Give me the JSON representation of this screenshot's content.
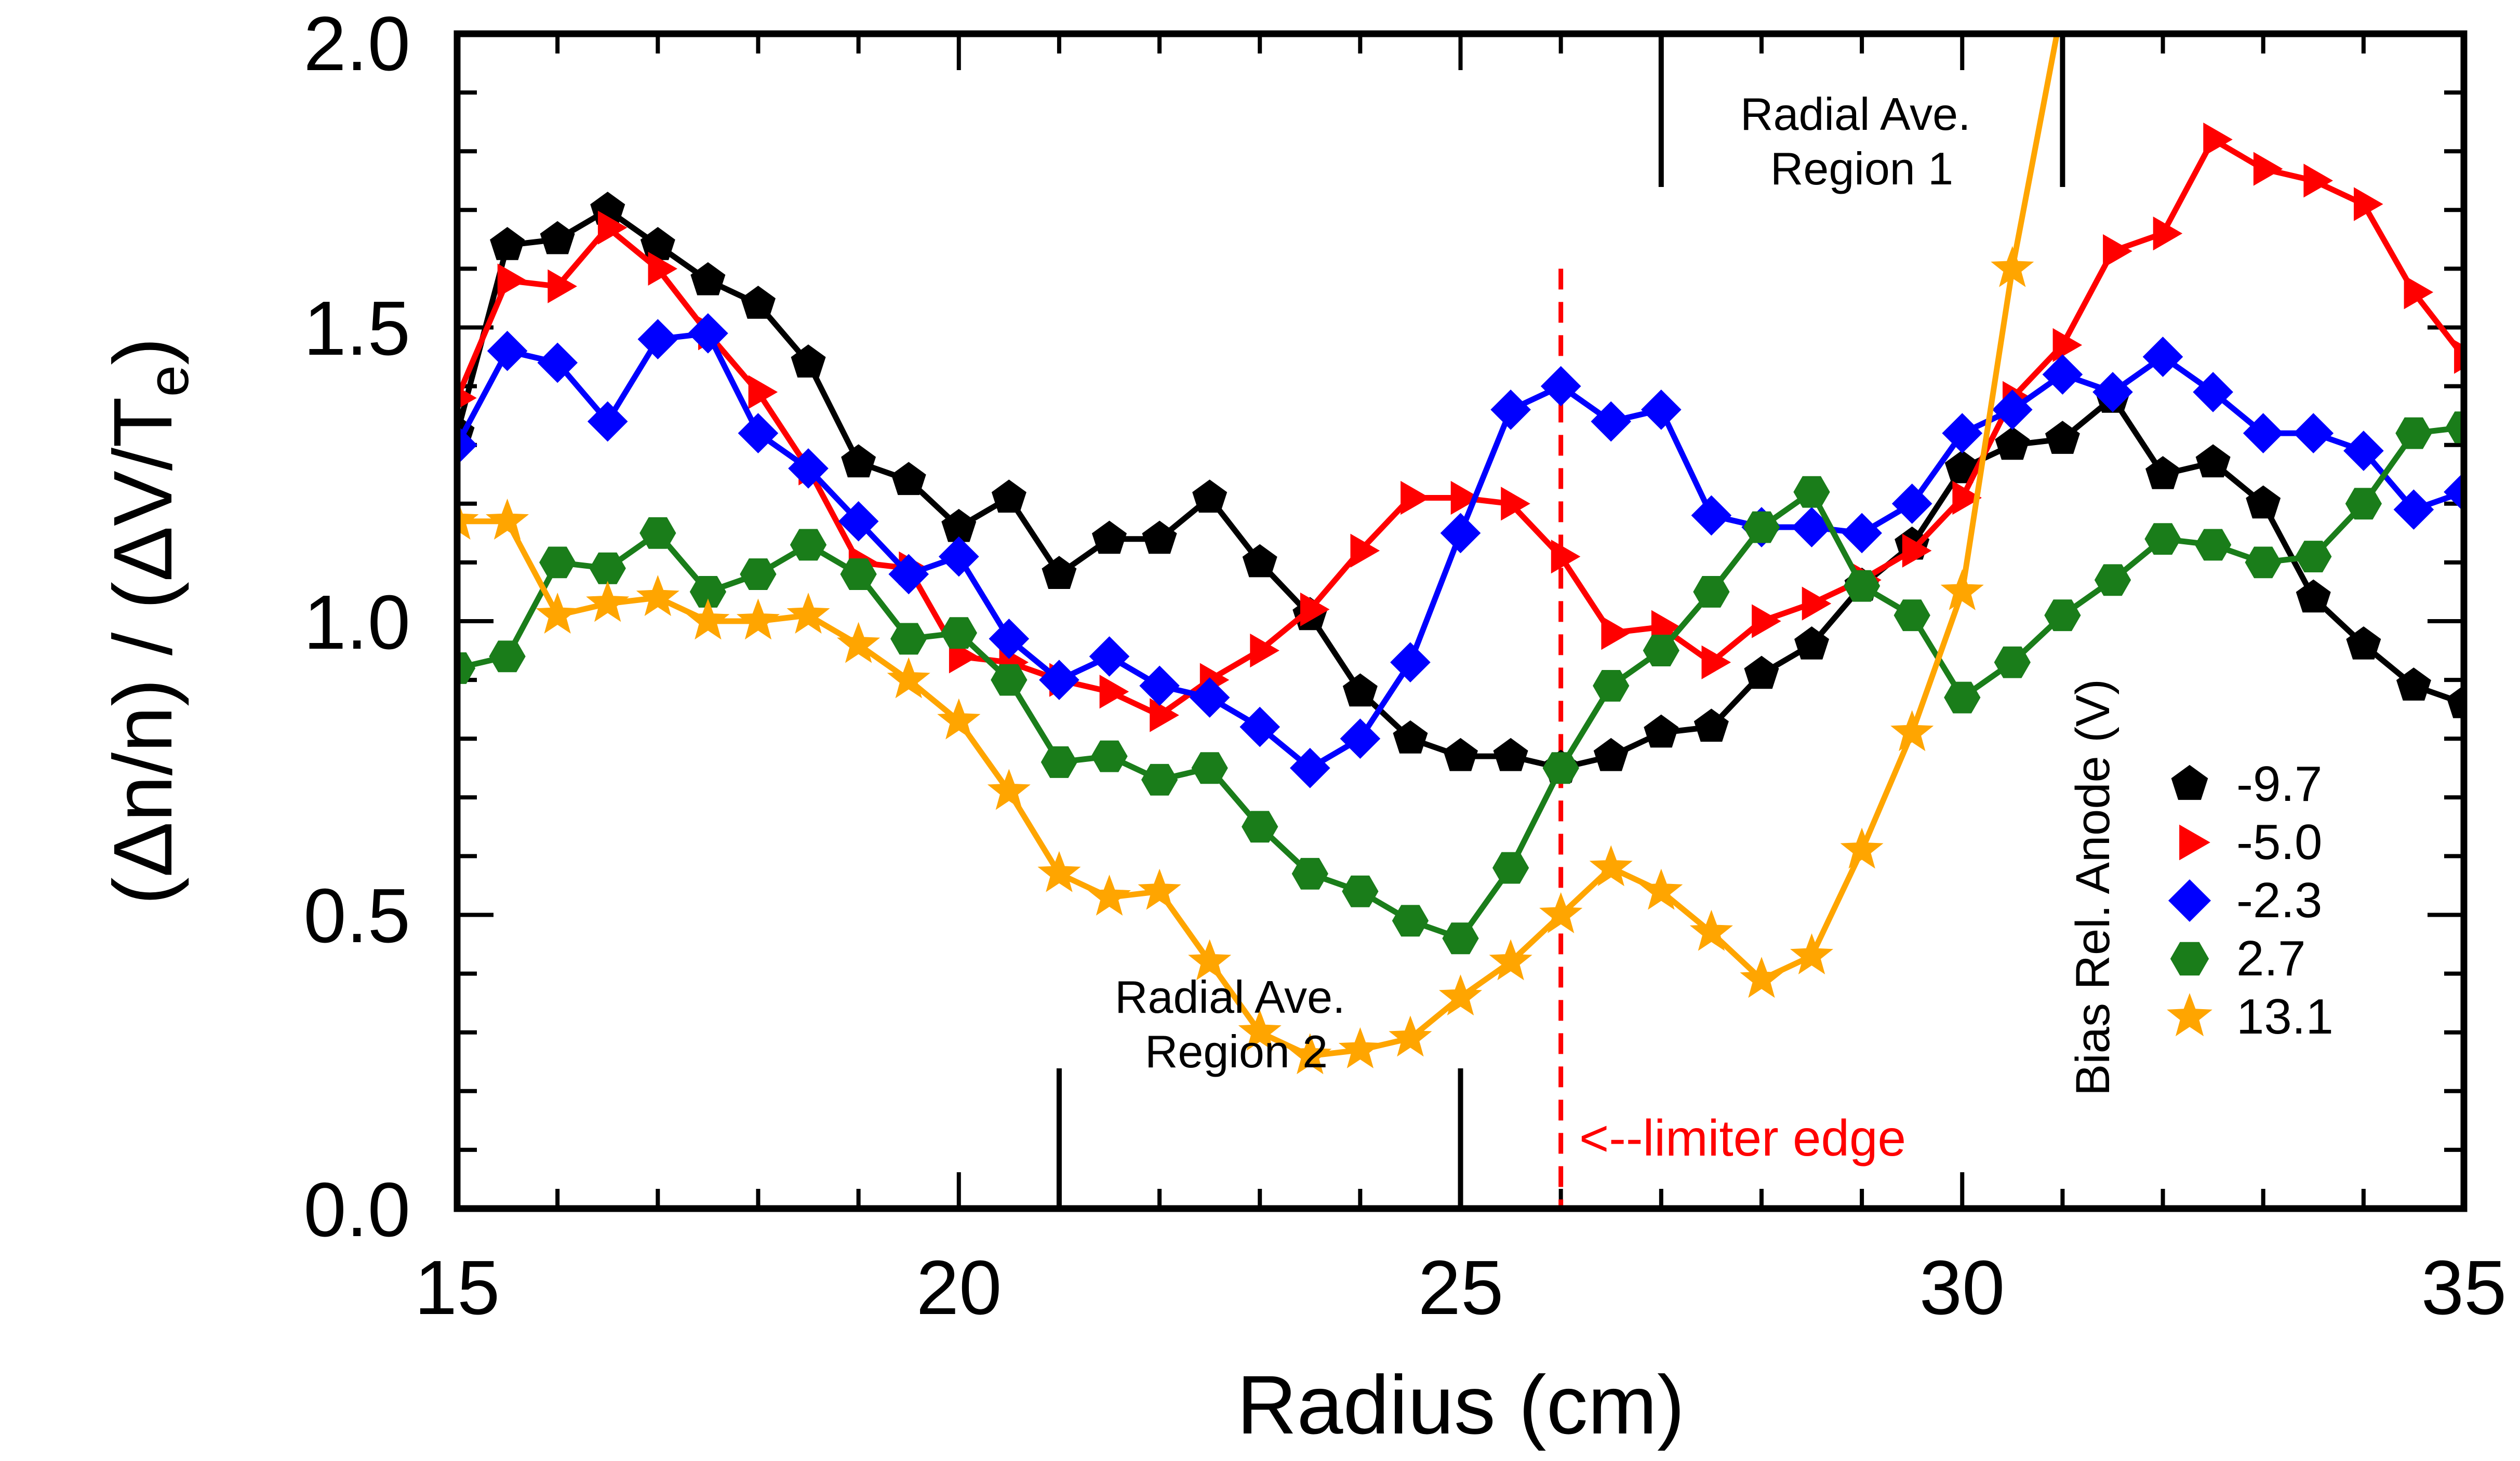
{
  "chart_data": {
    "type": "line",
    "xlabel": "Radius (cm)",
    "ylabel": "(Δn/n) / (ΔV/T",
    "ylabel_sub": "e",
    "ylabel_close": ")",
    "xlim": [
      15,
      35
    ],
    "ylim": [
      0,
      2
    ],
    "xticks": [
      "15",
      "20",
      "25",
      "30",
      "35"
    ],
    "yticks": [
      "0.0",
      "0.5",
      "1.0",
      "1.5",
      "2.0"
    ],
    "legend_title": "Bias Rel. Anode (V)",
    "legend_position": "right",
    "annotations": {
      "region1": [
        "Radial Ave.",
        "Region 1"
      ],
      "region2": [
        "Radial Ave.",
        "Region 2"
      ],
      "limiter": "<--limiter edge"
    },
    "region1_bounds": [
      27,
      31
    ],
    "region2_bounds": [
      21,
      25
    ],
    "limiter_x": 26,
    "series": [
      {
        "name": "-9.7",
        "color": "#000000",
        "marker": "pentagon",
        "x": [
          15.0,
          15.5,
          16.0,
          16.5,
          17.0,
          17.5,
          18.0,
          18.5,
          19.0,
          19.5,
          20.0,
          20.5,
          21.0,
          21.5,
          22.0,
          22.5,
          23.0,
          23.5,
          24.0,
          24.5,
          25.0,
          25.5,
          26.0,
          26.5,
          27.0,
          27.5,
          28.0,
          28.5,
          29.0,
          29.5,
          30.0,
          30.5,
          31.0,
          31.5,
          32.0,
          32.5,
          33.0,
          33.5,
          34.0,
          34.5,
          35.0
        ],
        "y": [
          1.32,
          1.64,
          1.65,
          1.7,
          1.64,
          1.58,
          1.54,
          1.44,
          1.27,
          1.24,
          1.16,
          1.21,
          1.08,
          1.14,
          1.14,
          1.21,
          1.1,
          1.01,
          0.88,
          0.8,
          0.77,
          0.77,
          0.75,
          0.77,
          0.81,
          0.82,
          0.91,
          0.96,
          1.06,
          1.13,
          1.26,
          1.3,
          1.31,
          1.38,
          1.25,
          1.27,
          1.2,
          1.04,
          0.96,
          0.89,
          0.86
        ]
      },
      {
        "name": "-5.0",
        "color": "#ff0000",
        "marker": "triangle-right",
        "x": [
          15.0,
          15.5,
          16.0,
          16.5,
          17.0,
          17.5,
          18.0,
          18.5,
          19.0,
          19.5,
          20.0,
          20.5,
          21.0,
          21.5,
          22.0,
          22.5,
          23.0,
          23.5,
          24.0,
          24.5,
          25.0,
          25.5,
          26.0,
          26.5,
          27.0,
          27.5,
          28.0,
          28.5,
          29.0,
          29.5,
          30.0,
          30.5,
          31.0,
          31.5,
          32.0,
          32.5,
          33.0,
          33.5,
          34.0,
          34.5,
          35.0
        ],
        "y": [
          1.38,
          1.58,
          1.57,
          1.67,
          1.6,
          1.49,
          1.39,
          1.26,
          1.1,
          1.09,
          0.94,
          0.93,
          0.9,
          0.88,
          0.84,
          0.9,
          0.95,
          1.02,
          1.12,
          1.21,
          1.21,
          1.2,
          1.11,
          0.98,
          0.99,
          0.93,
          1.0,
          1.03,
          1.07,
          1.12,
          1.21,
          1.38,
          1.47,
          1.63,
          1.66,
          1.82,
          1.77,
          1.75,
          1.71,
          1.56,
          1.45
        ]
      },
      {
        "name": "-2.3",
        "color": "#0000ff",
        "marker": "diamond",
        "x": [
          15.0,
          15.5,
          16.0,
          16.5,
          17.0,
          17.5,
          18.0,
          18.5,
          19.0,
          19.5,
          20.0,
          20.5,
          21.0,
          21.5,
          22.0,
          22.5,
          23.0,
          23.5,
          24.0,
          24.5,
          25.0,
          25.5,
          26.0,
          26.5,
          27.0,
          27.5,
          28.0,
          28.5,
          29.0,
          29.5,
          30.0,
          30.5,
          31.0,
          31.5,
          32.0,
          32.5,
          33.0,
          33.5,
          34.0,
          34.5,
          35.0
        ],
        "y": [
          1.3,
          1.46,
          1.44,
          1.34,
          1.48,
          1.49,
          1.32,
          1.26,
          1.17,
          1.08,
          1.11,
          0.97,
          0.9,
          0.94,
          0.89,
          0.87,
          0.82,
          0.75,
          0.8,
          0.93,
          1.15,
          1.36,
          1.4,
          1.34,
          1.36,
          1.18,
          1.16,
          1.16,
          1.15,
          1.2,
          1.32,
          1.36,
          1.42,
          1.39,
          1.45,
          1.39,
          1.32,
          1.32,
          1.29,
          1.19,
          1.22
        ]
      },
      {
        "name": "2.7",
        "color": "#1a7d1a",
        "marker": "hexagon",
        "x": [
          15.0,
          15.5,
          16.0,
          16.5,
          17.0,
          17.5,
          18.0,
          18.5,
          19.0,
          19.5,
          20.0,
          20.5,
          21.0,
          21.5,
          22.0,
          22.5,
          23.0,
          23.5,
          24.0,
          24.5,
          25.0,
          25.5,
          26.0,
          26.5,
          27.0,
          27.5,
          28.0,
          28.5,
          29.0,
          29.5,
          30.0,
          30.5,
          31.0,
          31.5,
          32.0,
          32.5,
          33.0,
          33.5,
          34.0,
          34.5,
          35.0
        ],
        "y": [
          0.92,
          0.94,
          1.1,
          1.09,
          1.15,
          1.05,
          1.08,
          1.13,
          1.08,
          0.97,
          0.98,
          0.9,
          0.76,
          0.77,
          0.73,
          0.75,
          0.65,
          0.57,
          0.54,
          0.49,
          0.46,
          0.58,
          0.75,
          0.89,
          0.95,
          1.05,
          1.16,
          1.22,
          1.06,
          1.01,
          0.87,
          0.93,
          1.01,
          1.07,
          1.14,
          1.13,
          1.1,
          1.11,
          1.2,
          1.32,
          1.33
        ]
      },
      {
        "name": "13.1",
        "color": "#ffa500",
        "marker": "star",
        "x": [
          15.0,
          15.5,
          16.0,
          16.5,
          17.0,
          17.5,
          18.0,
          18.5,
          19.0,
          19.5,
          20.0,
          20.5,
          21.0,
          21.5,
          22.0,
          22.5,
          23.0,
          23.5,
          24.0,
          24.5,
          25.0,
          25.5,
          26.0,
          26.5,
          27.0,
          27.5,
          28.0,
          28.5,
          29.0,
          29.5,
          30.0,
          30.5,
          31.0
        ],
        "y": [
          1.17,
          1.17,
          1.01,
          1.03,
          1.04,
          1.0,
          1.0,
          1.01,
          0.96,
          0.9,
          0.83,
          0.71,
          0.57,
          0.53,
          0.54,
          0.42,
          0.3,
          0.26,
          0.27,
          0.29,
          0.36,
          0.42,
          0.5,
          0.58,
          0.54,
          0.47,
          0.39,
          0.43,
          0.61,
          0.81,
          1.05,
          1.6,
          2.05
        ]
      }
    ]
  }
}
